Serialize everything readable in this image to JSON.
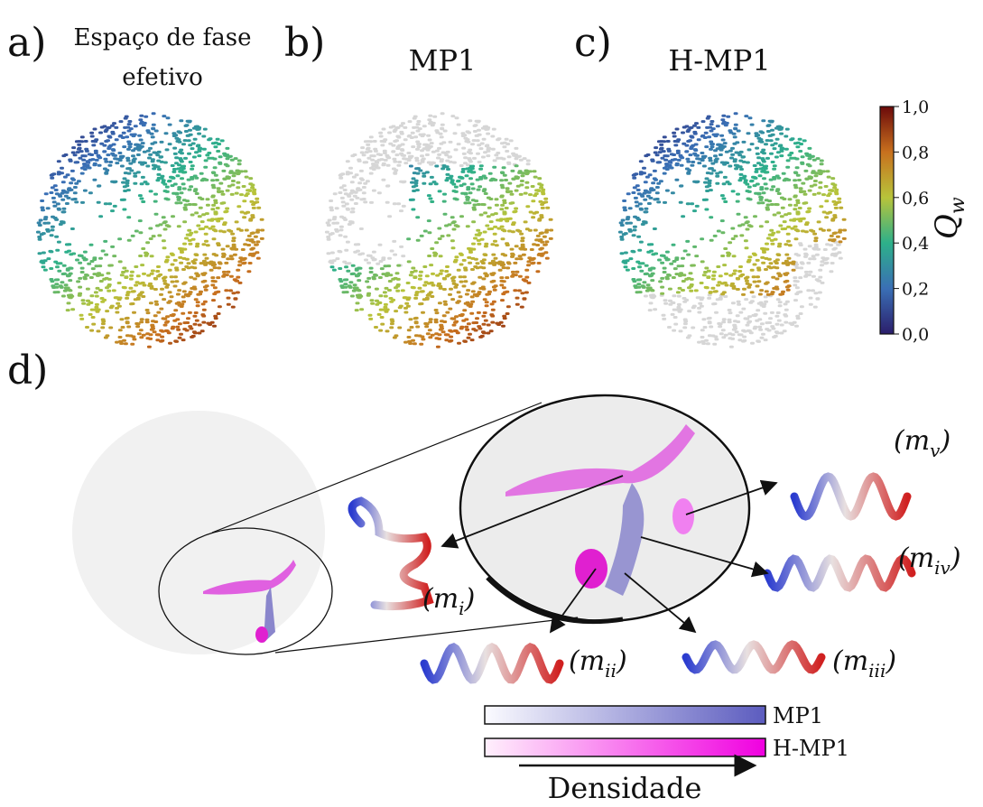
{
  "panels": [
    {
      "letter": "a)",
      "title": "Espaço de fase",
      "title2": "efetivo"
    },
    {
      "letter": "b)",
      "title": "MP1"
    },
    {
      "letter": "c)",
      "title": "H-MP1"
    },
    {
      "letter": "d)"
    }
  ],
  "colorbar": {
    "label": "Q",
    "label_sub": "w",
    "ticks": [
      "1,0",
      "0,8",
      "0,6",
      "0,4",
      "0,2",
      "0,0"
    ]
  },
  "states": [
    {
      "main": "(m",
      "sub": "i",
      "close": ")"
    },
    {
      "main": "(m",
      "sub": "ii",
      "close": ")"
    },
    {
      "main": "(m",
      "sub": "iii",
      "close": ")"
    },
    {
      "main": "(m",
      "sub": "iv",
      "close": ")"
    },
    {
      "main": "(m",
      "sub": "v",
      "close": ")"
    }
  ],
  "density_legend": {
    "items": [
      "MP1",
      "H-MP1"
    ],
    "axis_label": "Densidade"
  }
}
